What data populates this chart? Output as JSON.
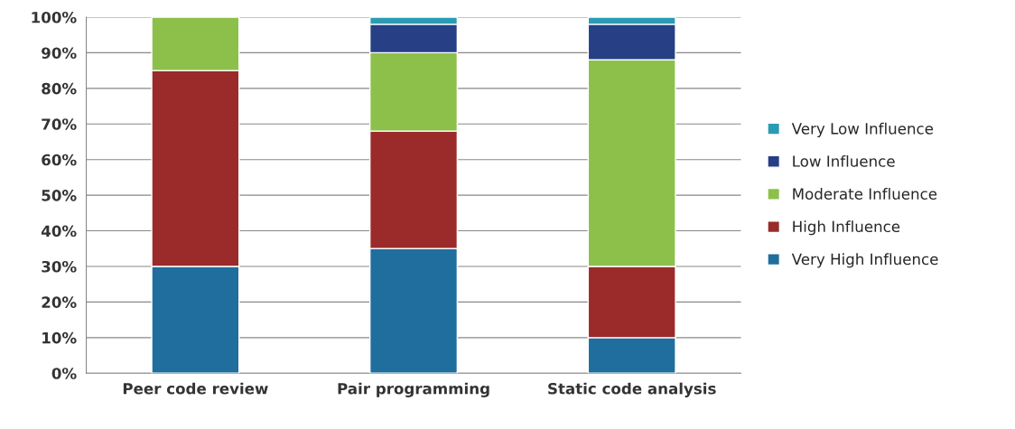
{
  "chart_data": {
    "type": "bar",
    "stacked": true,
    "categories": [
      "Peer code review",
      "Pair programming",
      "Static code analysis"
    ],
    "series": [
      {
        "name": "Very High Influence",
        "color": "#1f6e9e",
        "values": [
          30,
          35,
          10
        ]
      },
      {
        "name": "High Influence",
        "color": "#9b2a2a",
        "values": [
          55,
          33,
          20
        ]
      },
      {
        "name": "Moderate Influence",
        "color": "#8dc04b",
        "values": [
          15,
          22,
          58
        ]
      },
      {
        "name": "Low Influence",
        "color": "#263f85",
        "values": [
          0,
          8,
          10
        ]
      },
      {
        "name": "Very Low Influence",
        "color": "#2b9bb3",
        "values": [
          0,
          2,
          2
        ]
      }
    ],
    "ylim": [
      0,
      100
    ],
    "yticks": [
      {
        "value": 0,
        "label": "0%"
      },
      {
        "value": 10,
        "label": "10%"
      },
      {
        "value": 20,
        "label": "20%"
      },
      {
        "value": 30,
        "label": "30%"
      },
      {
        "value": 40,
        "label": "40%"
      },
      {
        "value": 50,
        "label": "50%"
      },
      {
        "value": 60,
        "label": "60%"
      },
      {
        "value": 70,
        "label": "70%"
      },
      {
        "value": 80,
        "label": "80%"
      },
      {
        "value": 90,
        "label": "90%"
      },
      {
        "value": 100,
        "label": "100%"
      }
    ],
    "grid": "y",
    "legend": "right"
  }
}
